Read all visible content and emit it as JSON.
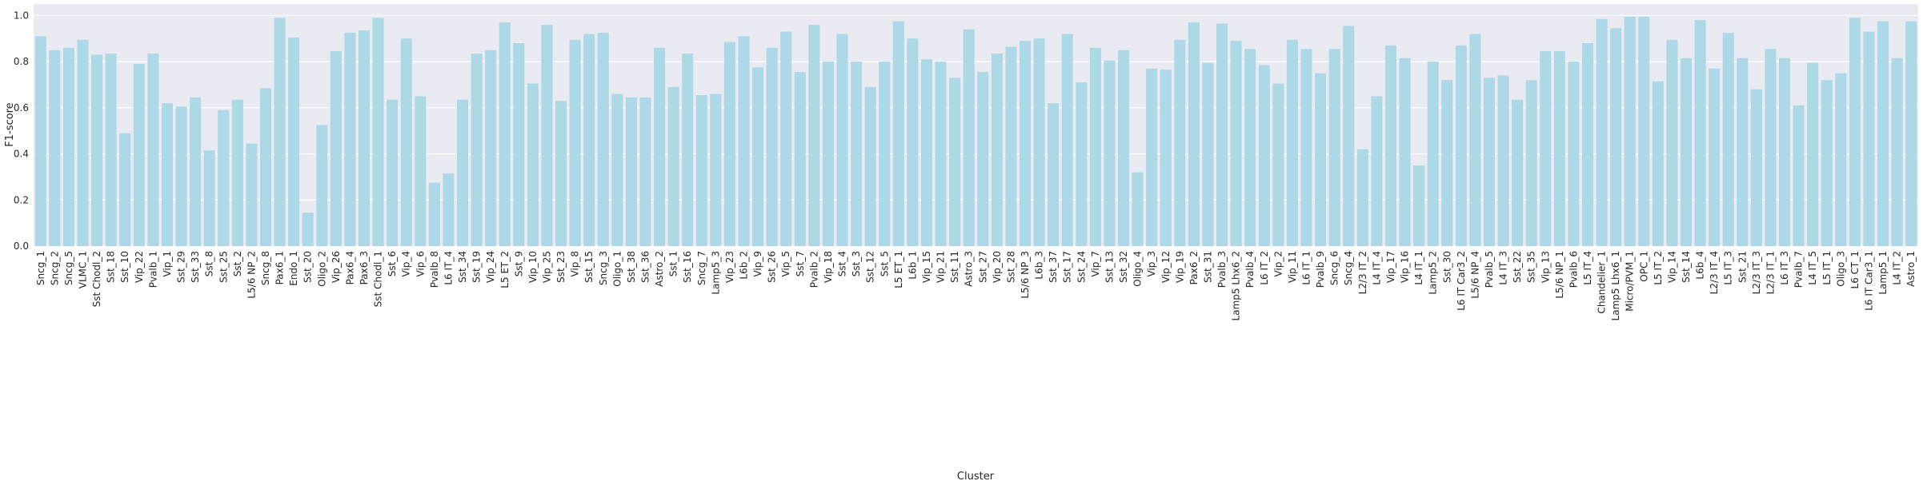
{
  "chart_data": {
    "type": "bar",
    "x_label": "Cluster",
    "y_label": "F1-score",
    "color": "#add8e6",
    "grid": true,
    "ylim": [
      0,
      1.05
    ],
    "yticks": [
      {
        "value": 0,
        "label": "0.0"
      },
      {
        "value": 0.2,
        "label": "0.2"
      },
      {
        "value": 0.4,
        "label": "0.4"
      },
      {
        "value": 0.6,
        "label": "0.6"
      },
      {
        "value": 0.8,
        "label": "0.8"
      },
      {
        "value": 1,
        "label": "1.0"
      }
    ],
    "categories": [
      "Sncg_1",
      "Sncg_2",
      "Sncg_5",
      "VLMC_1",
      "Sst Chodl_2",
      "Sst_18",
      "Sst_10",
      "Vip_22",
      "Pvalb_1",
      "Vip_1",
      "Sst_29",
      "Sst_33",
      "Sst_8",
      "Sst_25",
      "Sst_2",
      "L5/6 NP_2",
      "Sncg_8",
      "Pax6_1",
      "Endo_1",
      "Sst_20",
      "Oligo_2",
      "Vip_26",
      "Pax6_4",
      "Pax6_3",
      "Sst Chodl_1",
      "Sst_6",
      "Vip_4",
      "Vip_6",
      "Pvalb_8",
      "L6 IT_4",
      "Sst_34",
      "Sst_19",
      "Vip_24",
      "L5 ET_2",
      "Sst_9",
      "Vip_10",
      "Vip_25",
      "Sst_23",
      "Vip_8",
      "Sst_15",
      "Sncg_3",
      "Oligo_1",
      "Sst_38",
      "Sst_36",
      "Astro_2",
      "Sst_1",
      "Sst_16",
      "Sncg_7",
      "Lamp5_3",
      "Vip_23",
      "L6b_2",
      "Vip_9",
      "Sst_26",
      "Vip_5",
      "Sst_7",
      "Pvalb_2",
      "Vip_18",
      "Sst_4",
      "Sst_3",
      "Sst_12",
      "Sst_5",
      "L5 ET_1",
      "L6b_1",
      "Vip_15",
      "Vip_21",
      "Sst_11",
      "Astro_3",
      "Sst_27",
      "Vip_20",
      "Sst_28",
      "L5/6 NP_3",
      "L6b_3",
      "Sst_37",
      "Sst_17",
      "Sst_24",
      "Vip_7",
      "Sst_13",
      "Sst_32",
      "Oligo_4",
      "Vip_3",
      "Vip_12",
      "Vip_19",
      "Pax6_2",
      "Sst_31",
      "Pvalb_3",
      "Lamp5 Lhx6_2",
      "Pvalb_4",
      "L6 IT_2",
      "Vip_2",
      "Vip_11",
      "L6 IT_1",
      "Pvalb_9",
      "Sncg_6",
      "Sncg_4",
      "L2/3 IT_2",
      "L4 IT_4",
      "Vip_17",
      "Vip_16",
      "L4 IT_1",
      "Lamp5_2",
      "Sst_30",
      "L6 IT Car3_2",
      "L5/6 NP_4",
      "Pvalb_5",
      "L4 IT_3",
      "Sst_22",
      "Sst_35",
      "Vip_13",
      "L5/6 NP_1",
      "Pvalb_6",
      "L5 IT_4",
      "Chandelier_1",
      "Lamp5 Lhx6_1",
      "Micro/PVM_1",
      "OPC_1",
      "L5 IT_2",
      "Vip_14",
      "Sst_14",
      "L6b_4",
      "L2/3 IT_4",
      "L5 IT_3",
      "Sst_21",
      "L2/3 IT_3",
      "L2/3 IT_1",
      "L6 IT_3",
      "Pvalb_7",
      "L4 IT_5",
      "L5 IT_1",
      "Oligo_3",
      "L6 CT_1",
      "L6 IT Car3_1",
      "Lamp5_1",
      "L4 IT_2",
      "Astro_1"
    ],
    "values": [
      0.91,
      0.85,
      0.86,
      0.895,
      0.83,
      0.835,
      0.49,
      0.79,
      0.835,
      0.62,
      0.605,
      0.645,
      0.415,
      0.59,
      0.635,
      0.445,
      0.685,
      0.99,
      0.905,
      0.145,
      0.525,
      0.845,
      0.925,
      0.935,
      0.99,
      0.635,
      0.9,
      0.65,
      0.275,
      0.315,
      0.635,
      0.835,
      0.85,
      0.97,
      0.88,
      0.705,
      0.96,
      0.63,
      0.895,
      0.92,
      0.925,
      0.66,
      0.645,
      0.645,
      0.86,
      0.69,
      0.835,
      0.655,
      0.66,
      0.885,
      0.91,
      0.775,
      0.86,
      0.93,
      0.755,
      0.96,
      0.8,
      0.92,
      0.8,
      0.69,
      0.8,
      0.975,
      0.9,
      0.81,
      0.8,
      0.73,
      0.94,
      0.755,
      0.835,
      0.865,
      0.89,
      0.9,
      0.62,
      0.92,
      0.71,
      0.86,
      0.805,
      0.85,
      0.32,
      0.77,
      0.765,
      0.895,
      0.97,
      0.795,
      0.965,
      0.89,
      0.855,
      0.785,
      0.705,
      0.895,
      0.855,
      0.75,
      0.855,
      0.955,
      0.42,
      0.65,
      0.87,
      0.815,
      0.35,
      0.8,
      0.72,
      0.87,
      0.92,
      0.73,
      0.74,
      0.635,
      0.72,
      0.845,
      0.845,
      0.8,
      0.88,
      0.985,
      0.945,
      0.995,
      0.995,
      0.715,
      0.895,
      0.815,
      0.98,
      0.77,
      0.925,
      0.815,
      0.68,
      0.855,
      0.815,
      0.61,
      0.795,
      0.72,
      0.75,
      0.99,
      0.93,
      0.975,
      0.815,
      0.975
    ]
  }
}
